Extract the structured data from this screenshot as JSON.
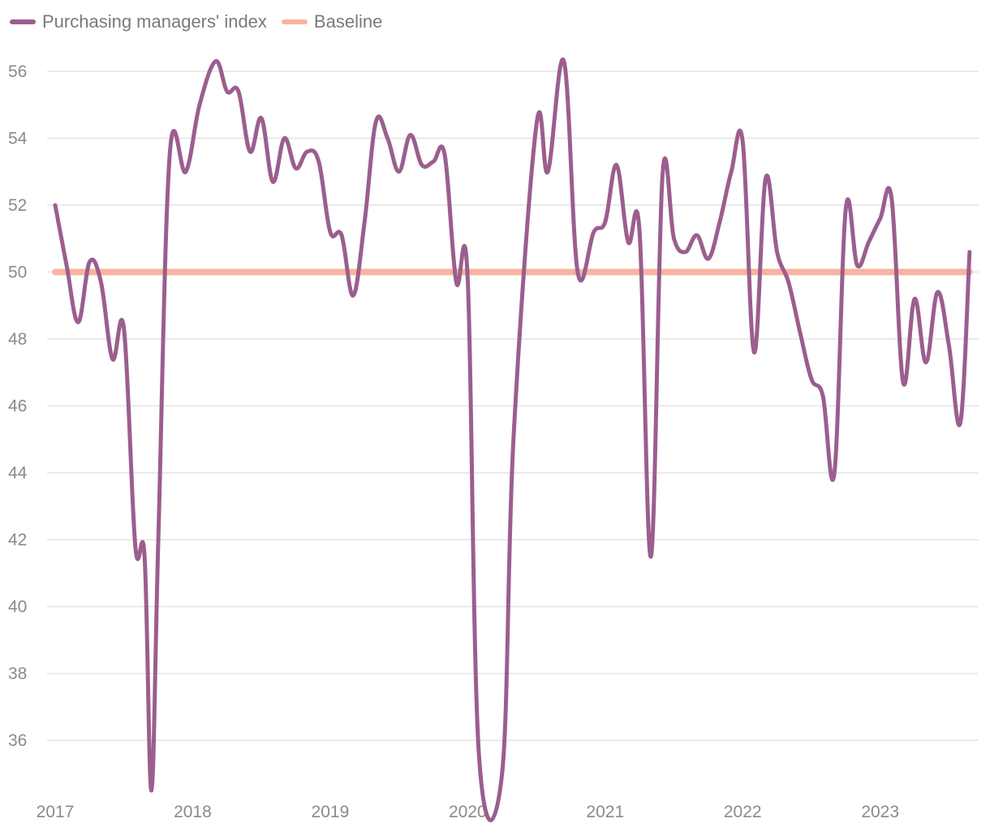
{
  "chart_data": {
    "type": "line",
    "title": "",
    "xlabel": "",
    "ylabel": "",
    "ylim": [
      34.5,
      56.8
    ],
    "xlim": [
      2017.0,
      2023.71
    ],
    "yticks": [
      36,
      38,
      40,
      42,
      44,
      46,
      48,
      50,
      52,
      54,
      56
    ],
    "xticks": [
      {
        "value": 2017,
        "label": "2017"
      },
      {
        "value": 2018,
        "label": "2018"
      },
      {
        "value": 2019,
        "label": "2019"
      },
      {
        "value": 2020,
        "label": "2020"
      },
      {
        "value": 2021,
        "label": "2021"
      },
      {
        "value": 2022,
        "label": "2022"
      },
      {
        "value": 2023,
        "label": "2023"
      }
    ],
    "grid": true,
    "legend_position": "top-left",
    "series": [
      {
        "name": "Purchasing managers' index",
        "color": "#9b5e8e",
        "x": [
          2017.0,
          2017.083,
          2017.167,
          2017.25,
          2017.333,
          2017.417,
          2017.5,
          2017.583,
          2017.65,
          2017.7,
          2017.75,
          2017.833,
          2017.95,
          2018.05,
          2018.167,
          2018.25,
          2018.333,
          2018.417,
          2018.5,
          2018.583,
          2018.667,
          2018.75,
          2018.833,
          2018.917,
          2019.0,
          2019.083,
          2019.167,
          2019.25,
          2019.333,
          2019.417,
          2019.5,
          2019.583,
          2019.667,
          2019.75,
          2019.833,
          2019.917,
          2020.0,
          2020.083,
          2020.25,
          2020.333,
          2020.5,
          2020.583,
          2020.7,
          2020.8,
          2020.917,
          2021.0,
          2021.083,
          2021.167,
          2021.25,
          2021.333,
          2021.417,
          2021.5,
          2021.583,
          2021.667,
          2021.75,
          2021.833,
          2021.917,
          2022.0,
          2022.083,
          2022.167,
          2022.25,
          2022.333,
          2022.417,
          2022.5,
          2022.583,
          2022.667,
          2022.75,
          2022.833,
          2022.917,
          2023.0,
          2023.083,
          2023.167,
          2023.25,
          2023.333,
          2023.417,
          2023.5,
          2023.583,
          2023.65
        ],
        "values": [
          52.0,
          50.2,
          48.5,
          50.3,
          49.7,
          47.4,
          48.3,
          41.8,
          41.5,
          34.5,
          42.0,
          53.5,
          53.0,
          55.0,
          56.3,
          55.4,
          55.4,
          53.6,
          54.6,
          52.7,
          54.0,
          53.1,
          53.6,
          53.3,
          51.2,
          51.1,
          49.3,
          51.5,
          54.5,
          54.0,
          53.0,
          54.1,
          53.2,
          53.3,
          53.5,
          49.7,
          49.8,
          35.5,
          35.0,
          45.0,
          54.4,
          53.0,
          56.3,
          50.0,
          51.2,
          51.5,
          53.2,
          50.9,
          51.2,
          41.5,
          52.9,
          51.0,
          50.6,
          51.1,
          50.4,
          51.5,
          53.0,
          53.9,
          47.6,
          52.8,
          50.6,
          49.7,
          48.2,
          46.8,
          46.3,
          44.0,
          51.9,
          50.2,
          50.9,
          51.6,
          52.2,
          46.7,
          49.2,
          47.3,
          49.4,
          47.8,
          45.5,
          50.6
        ]
      },
      {
        "name": "Baseline",
        "color": "#f7b49e",
        "x": [
          2017.0,
          2023.65
        ],
        "values": [
          50,
          50
        ]
      }
    ]
  }
}
